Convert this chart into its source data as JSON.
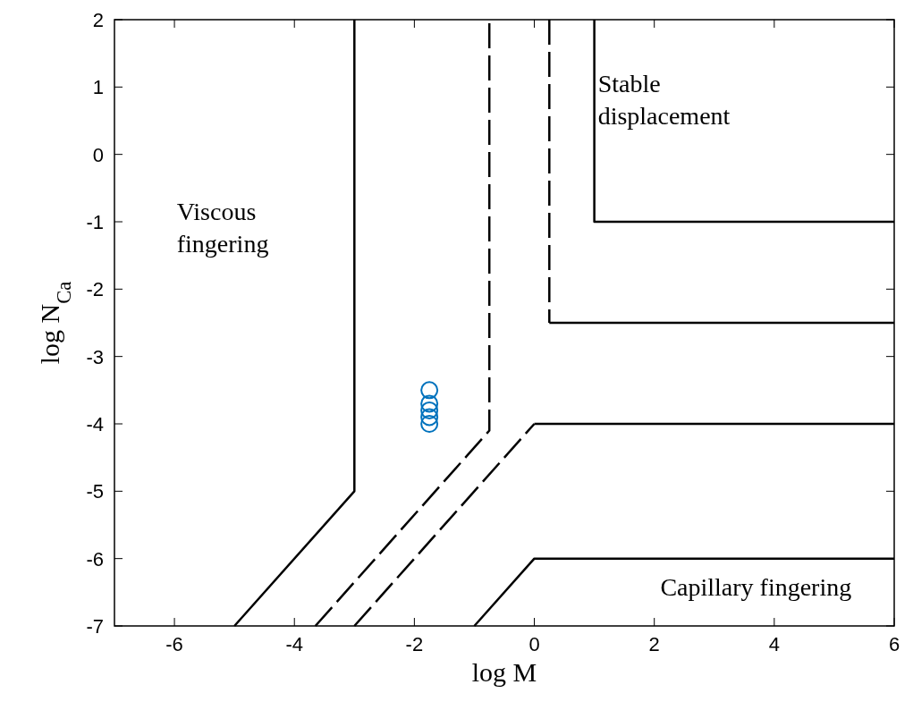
{
  "chart_data": {
    "type": "line",
    "xlabel": "log M",
    "ylabel": "log N$_{Ca}$",
    "xlim": [
      -7,
      6
    ],
    "xticks": [
      -6,
      -4,
      -2,
      0,
      2,
      4,
      6
    ],
    "ylim": [
      -7,
      2
    ],
    "yticks": [
      -7,
      -6,
      -5,
      -4,
      -3,
      -2,
      -1,
      0,
      1,
      2
    ],
    "grid": false,
    "series": [
      {
        "color": "#000000",
        "line_style": "solid",
        "x": [
          -5,
          -3,
          -3
        ],
        "values": [
          -7,
          -5,
          2
        ]
      },
      {
        "color": "#000000",
        "line_style": "dashed",
        "x": [
          -3.65,
          -0.75,
          -0.75
        ],
        "values": [
          -7,
          -4.1,
          2
        ]
      },
      {
        "color": "#000000",
        "line_style": "dashed",
        "x": [
          -3,
          0
        ],
        "values": [
          -7,
          -4
        ]
      },
      {
        "color": "#000000",
        "line_style": "solid",
        "x": [
          0,
          6
        ],
        "values": [
          -4,
          -4
        ]
      },
      {
        "color": "#000000",
        "line_style": "dashed",
        "x": [
          0.25,
          0.25
        ],
        "values": [
          2,
          -2.5
        ]
      },
      {
        "color": "#000000",
        "line_style": "solid",
        "x": [
          0.25,
          6
        ],
        "values": [
          -2.5,
          -2.5
        ]
      },
      {
        "color": "#000000",
        "line_style": "solid",
        "x": [
          1,
          1,
          6
        ],
        "values": [
          2,
          -1,
          -1
        ]
      },
      {
        "color": "#000000",
        "line_style": "solid",
        "x": [
          -1,
          0,
          6
        ],
        "values": [
          -7,
          -6,
          -6
        ]
      },
      {
        "type": "scatter",
        "color": "#0072bd",
        "marker": "circle",
        "x": [
          -1.75,
          -1.75,
          -1.75,
          -1.75,
          -1.75
        ],
        "values": [
          -3.5,
          -3.7,
          -3.8,
          -3.9,
          -4.0
        ]
      }
    ],
    "annotations": [
      "Viscous\nfingering",
      "Stable\ndisplacement",
      "Capillary fingering"
    ]
  }
}
